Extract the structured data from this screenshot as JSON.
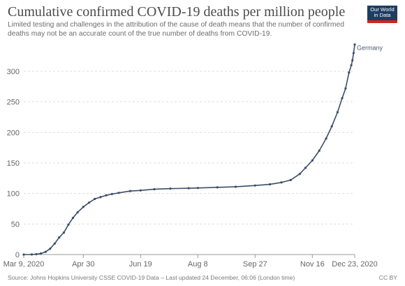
{
  "header": {
    "title": "Cumulative confirmed COVID-19 deaths per million people",
    "subtitle": "Limited testing and challenges in the attribution of the cause of death means that the number of confirmed deaths may not be an accurate count of the true number of deaths from COVID-19.",
    "logo_line1": "Our World",
    "logo_line2": "in Data"
  },
  "footer": {
    "source": "Source: Johns Hopkins University CSSE COVID-19 Data – Last updated 24 December, 06:06 (London time)",
    "license": "CC BY"
  },
  "colors": {
    "line": "#3c4e66",
    "grid": "#dddddd",
    "logo_bg": "#1d3d63",
    "logo_accent": "#ce261e"
  },
  "chart_data": {
    "type": "line",
    "title": "Cumulative confirmed COVID-19 deaths per million people",
    "xlabel": "",
    "ylabel": "",
    "x_ticks": [
      "Mar 9, 2020",
      "Apr 30",
      "Jun 19",
      "Aug 8",
      "Sep 27",
      "Nov 16",
      "Dec 23, 2020"
    ],
    "y_ticks": [
      0,
      50,
      100,
      150,
      200,
      250,
      300
    ],
    "ylim": [
      0,
      345
    ],
    "xlim": [
      "2020-03-09",
      "2020-12-23"
    ],
    "grid": "horizontal dashed",
    "legend": "inline label at line end",
    "series": [
      {
        "name": "Germany",
        "color": "#3c4e66",
        "points": [
          [
            "2020-03-09",
            0
          ],
          [
            "2020-03-16",
            0.1
          ],
          [
            "2020-03-20",
            0.6
          ],
          [
            "2020-03-24",
            1.7
          ],
          [
            "2020-03-28",
            4.3
          ],
          [
            "2020-04-01",
            9.5
          ],
          [
            "2020-04-05",
            18
          ],
          [
            "2020-04-09",
            28
          ],
          [
            "2020-04-13",
            36
          ],
          [
            "2020-04-17",
            49
          ],
          [
            "2020-04-21",
            60
          ],
          [
            "2020-04-25",
            69
          ],
          [
            "2020-04-30",
            78
          ],
          [
            "2020-05-05",
            85
          ],
          [
            "2020-05-10",
            91
          ],
          [
            "2020-05-15",
            94
          ],
          [
            "2020-05-20",
            97
          ],
          [
            "2020-05-25",
            99
          ],
          [
            "2020-05-31",
            101
          ],
          [
            "2020-06-10",
            104
          ],
          [
            "2020-06-19",
            105
          ],
          [
            "2020-07-01",
            107
          ],
          [
            "2020-07-15",
            108
          ],
          [
            "2020-07-31",
            108.5
          ],
          [
            "2020-08-08",
            109
          ],
          [
            "2020-08-25",
            110
          ],
          [
            "2020-09-10",
            111
          ],
          [
            "2020-09-27",
            113
          ],
          [
            "2020-10-10",
            115
          ],
          [
            "2020-10-20",
            118
          ],
          [
            "2020-10-28",
            122
          ],
          [
            "2020-11-05",
            132
          ],
          [
            "2020-11-10",
            142
          ],
          [
            "2020-11-16",
            154
          ],
          [
            "2020-11-22",
            170
          ],
          [
            "2020-11-28",
            190
          ],
          [
            "2020-12-03",
            210
          ],
          [
            "2020-12-08",
            233
          ],
          [
            "2020-12-12",
            256
          ],
          [
            "2020-12-15",
            272
          ],
          [
            "2020-12-18",
            298
          ],
          [
            "2020-12-20",
            310
          ],
          [
            "2020-12-21",
            318
          ],
          [
            "2020-12-22",
            330
          ],
          [
            "2020-12-23",
            344
          ]
        ]
      }
    ]
  }
}
